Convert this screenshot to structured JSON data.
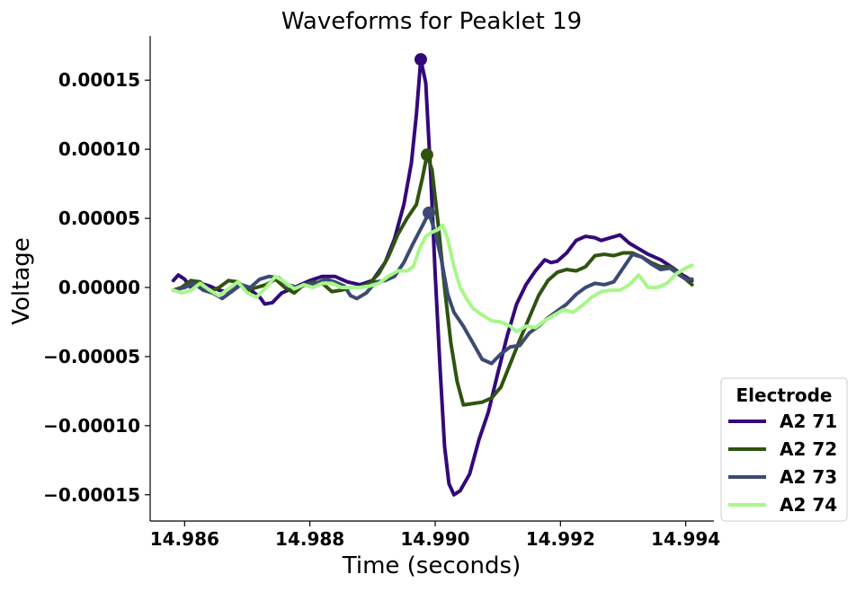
{
  "chart_data": {
    "type": "line",
    "title": "Waveforms for Peaklet 19",
    "xlabel": "Time (seconds)",
    "ylabel": "Voltage",
    "xlim": [
      14.98545,
      14.99445
    ],
    "ylim": [
      -0.000169,
      0.000182
    ],
    "xticks": [
      14.986,
      14.988,
      14.99,
      14.992,
      14.994
    ],
    "xtick_labels": [
      "14.986",
      "14.988",
      "14.990",
      "14.992",
      "14.994"
    ],
    "yticks": [
      0.00015,
      0.0001,
      5e-05,
      0.0,
      -5e-05,
      -0.0001,
      -0.00015
    ],
    "ytick_labels": [
      "0.00015",
      "0.00010",
      "0.00005",
      "0.00000",
      "−0.00005",
      "−0.00010",
      "−0.00015"
    ],
    "grid": false,
    "legend": {
      "title": "Electrode",
      "placement": "outside-bottom-right"
    },
    "series": [
      {
        "name": "A2 71",
        "color": "#33097a",
        "peak": [
          14.98977,
          0.000165
        ],
        "points": [
          [
            14.98582,
            5e-06
          ],
          [
            14.9859,
            9e-06
          ],
          [
            14.986,
            6e-06
          ],
          [
            14.9861,
            0.0
          ],
          [
            14.98625,
            3e-06
          ],
          [
            14.9864,
            1e-06
          ],
          [
            14.98655,
            -2e-06
          ],
          [
            14.98665,
            -3e-06
          ],
          [
            14.9868,
            2e-06
          ],
          [
            14.987,
            0.0
          ],
          [
            14.9872,
            -7e-06
          ],
          [
            14.98728,
            -1.2e-05
          ],
          [
            14.9874,
            -1.1e-05
          ],
          [
            14.98755,
            -4e-06
          ],
          [
            14.9877,
            -1e-06
          ],
          [
            14.98785,
            2e-06
          ],
          [
            14.988,
            5e-06
          ],
          [
            14.9882,
            8e-06
          ],
          [
            14.9884,
            8e-06
          ],
          [
            14.9886,
            4e-06
          ],
          [
            14.9888,
            2e-06
          ],
          [
            14.989,
            5e-06
          ],
          [
            14.9892,
            1.8e-05
          ],
          [
            14.98935,
            3.5e-05
          ],
          [
            14.9895,
            6e-05
          ],
          [
            14.98962,
            9e-05
          ],
          [
            14.9897,
            0.000125
          ],
          [
            14.98977,
            0.000165
          ],
          [
            14.98985,
            0.000148
          ],
          [
            14.98993,
            8e-05
          ],
          [
            14.99,
            1e-05
          ],
          [
            14.99008,
            -6e-05
          ],
          [
            14.99015,
            -0.000115
          ],
          [
            14.99022,
            -0.000142
          ],
          [
            14.9903,
            -0.00015
          ],
          [
            14.9904,
            -0.000147
          ],
          [
            14.99055,
            -0.000135
          ],
          [
            14.9907,
            -0.00011
          ],
          [
            14.99085,
            -9e-05
          ],
          [
            14.991,
            -6.2e-05
          ],
          [
            14.99115,
            -3.5e-05
          ],
          [
            14.9913,
            -1.2e-05
          ],
          [
            14.99145,
            2e-06
          ],
          [
            14.9916,
            1.2e-05
          ],
          [
            14.99175,
            2e-05
          ],
          [
            14.99185,
            1.8e-05
          ],
          [
            14.99195,
            1.9e-05
          ],
          [
            14.9921,
            2.5e-05
          ],
          [
            14.99225,
            3.4e-05
          ],
          [
            14.9924,
            3.7e-05
          ],
          [
            14.99255,
            3.6e-05
          ],
          [
            14.99265,
            3.4e-05
          ],
          [
            14.9928,
            3.6e-05
          ],
          [
            14.99295,
            3.8e-05
          ],
          [
            14.9931,
            3.2e-05
          ],
          [
            14.99325,
            2.8e-05
          ],
          [
            14.9934,
            2.4e-05
          ],
          [
            14.9936,
            2e-05
          ],
          [
            14.9938,
            1.4e-05
          ],
          [
            14.99395,
            9e-06
          ],
          [
            14.9941,
            5e-06
          ]
        ]
      },
      {
        "name": "A2 72",
        "color": "#2f5410",
        "peak": [
          14.98987,
          9.6e-05
        ],
        "points": [
          [
            14.98582,
            -2e-06
          ],
          [
            14.98595,
            0.0
          ],
          [
            14.9861,
            5e-06
          ],
          [
            14.98625,
            4e-06
          ],
          [
            14.9864,
            -3e-06
          ],
          [
            14.98655,
            0.0
          ],
          [
            14.9867,
            5e-06
          ],
          [
            14.98685,
            4e-06
          ],
          [
            14.987,
            -2e-06
          ],
          [
            14.98715,
            0.0
          ],
          [
            14.9873,
            2e-06
          ],
          [
            14.98745,
            6e-06
          ],
          [
            14.9876,
            0.0
          ],
          [
            14.98775,
            -4e-06
          ],
          [
            14.9879,
            2e-06
          ],
          [
            14.98805,
            4e-06
          ],
          [
            14.9882,
            3e-06
          ],
          [
            14.98835,
            -3e-06
          ],
          [
            14.9885,
            -2e-06
          ],
          [
            14.98865,
            0.0
          ],
          [
            14.9888,
            0.0
          ],
          [
            14.98895,
            3e-06
          ],
          [
            14.9891,
            1e-05
          ],
          [
            14.98925,
            2.2e-05
          ],
          [
            14.9894,
            3.8e-05
          ],
          [
            14.98955,
            5e-05
          ],
          [
            14.9897,
            6e-05
          ],
          [
            14.9898,
            8e-05
          ],
          [
            14.98987,
            9.6e-05
          ],
          [
            14.98995,
            8.5e-05
          ],
          [
            14.99005,
            4.5e-05
          ],
          [
            14.99015,
            0.0
          ],
          [
            14.99025,
            -4e-05
          ],
          [
            14.99035,
            -6.8e-05
          ],
          [
            14.99045,
            -8.5e-05
          ],
          [
            14.9906,
            -8.4e-05
          ],
          [
            14.99075,
            -8.3e-05
          ],
          [
            14.9909,
            -8e-05
          ],
          [
            14.99105,
            -7.2e-05
          ],
          [
            14.9912,
            -5.5e-05
          ],
          [
            14.99135,
            -3.8e-05
          ],
          [
            14.9915,
            -2.2e-05
          ],
          [
            14.99165,
            -6e-06
          ],
          [
            14.9918,
            5e-06
          ],
          [
            14.99195,
            1.1e-05
          ],
          [
            14.9921,
            1.3e-05
          ],
          [
            14.99225,
            1.2e-05
          ],
          [
            14.9924,
            1.5e-05
          ],
          [
            14.99255,
            2.3e-05
          ],
          [
            14.9927,
            2.4e-05
          ],
          [
            14.99285,
            2.3e-05
          ],
          [
            14.993,
            2.5e-05
          ],
          [
            14.99315,
            2.5e-05
          ],
          [
            14.9933,
            2.2e-05
          ],
          [
            14.99345,
            1.8e-05
          ],
          [
            14.9936,
            1.5e-05
          ],
          [
            14.99375,
            1.5e-05
          ],
          [
            14.9939,
            1e-05
          ],
          [
            14.994,
            6e-06
          ],
          [
            14.9941,
            2e-06
          ]
        ]
      },
      {
        "name": "A2 73",
        "color": "#3c4a73",
        "peak": [
          14.9899,
          5.4e-05
        ],
        "points": [
          [
            14.98582,
            -2e-06
          ],
          [
            14.986,
            0.0
          ],
          [
            14.98615,
            3e-06
          ],
          [
            14.9863,
            -2e-06
          ],
          [
            14.98645,
            -4e-06
          ],
          [
            14.9866,
            -8e-06
          ],
          [
            14.98675,
            -3e-06
          ],
          [
            14.9869,
            2e-06
          ],
          [
            14.98705,
            0.0
          ],
          [
            14.9872,
            6e-06
          ],
          [
            14.98735,
            8e-06
          ],
          [
            14.9875,
            7e-06
          ],
          [
            14.98765,
            2e-06
          ],
          [
            14.9878,
            0.0
          ],
          [
            14.98795,
            2e-06
          ],
          [
            14.9881,
            3e-06
          ],
          [
            14.98825,
            6e-06
          ],
          [
            14.9884,
            4e-06
          ],
          [
            14.98855,
            1e-06
          ],
          [
            14.98865,
            -6e-06
          ],
          [
            14.98875,
            -8e-06
          ],
          [
            14.9889,
            -4e-06
          ],
          [
            14.98905,
            4e-06
          ],
          [
            14.9892,
            5e-06
          ],
          [
            14.98935,
            8e-06
          ],
          [
            14.9895,
            1.8e-05
          ],
          [
            14.98965,
            3.2e-05
          ],
          [
            14.9898,
            4.5e-05
          ],
          [
            14.9899,
            5.4e-05
          ],
          [
            14.99,
            4e-05
          ],
          [
            14.9901,
            2e-05
          ],
          [
            14.9902,
            -5e-06
          ],
          [
            14.9903,
            -1.8e-05
          ],
          [
            14.99045,
            -2.8e-05
          ],
          [
            14.9906,
            -4e-05
          ],
          [
            14.99075,
            -5.2e-05
          ],
          [
            14.9909,
            -5.5e-05
          ],
          [
            14.99105,
            -4.8e-05
          ],
          [
            14.9912,
            -4.3e-05
          ],
          [
            14.99135,
            -4.2e-05
          ],
          [
            14.9915,
            -3.3e-05
          ],
          [
            14.99165,
            -2.8e-05
          ],
          [
            14.9918,
            -2.2e-05
          ],
          [
            14.99195,
            -1.7e-05
          ],
          [
            14.9921,
            -1.2e-05
          ],
          [
            14.99225,
            -5e-06
          ],
          [
            14.9924,
            0.0
          ],
          [
            14.99255,
            3e-06
          ],
          [
            14.9927,
            2e-06
          ],
          [
            14.99285,
            4e-06
          ],
          [
            14.993,
            1.4e-05
          ],
          [
            14.99315,
            2.4e-05
          ],
          [
            14.9933,
            2.2e-05
          ],
          [
            14.99345,
            1.7e-05
          ],
          [
            14.9936,
            1.3e-05
          ],
          [
            14.99375,
            1.4e-05
          ],
          [
            14.9939,
            9e-06
          ],
          [
            14.994,
            6e-06
          ],
          [
            14.9941,
            6e-06
          ]
        ]
      },
      {
        "name": "A2 74",
        "color": "#a8f78a",
        "peak": null,
        "points": [
          [
            14.98582,
            -2e-06
          ],
          [
            14.98595,
            -4e-06
          ],
          [
            14.9861,
            -2e-06
          ],
          [
            14.98625,
            3e-06
          ],
          [
            14.9864,
            -2e-06
          ],
          [
            14.98655,
            -6e-06
          ],
          [
            14.9867,
            -1e-06
          ],
          [
            14.98685,
            4e-06
          ],
          [
            14.987,
            -4e-06
          ],
          [
            14.98715,
            -7e-06
          ],
          [
            14.9873,
            0.0
          ],
          [
            14.98745,
            8e-06
          ],
          [
            14.9876,
            4e-06
          ],
          [
            14.98775,
            -1e-06
          ],
          [
            14.9879,
            2e-06
          ],
          [
            14.98805,
            0.0
          ],
          [
            14.9882,
            3e-06
          ],
          [
            14.98835,
            3e-06
          ],
          [
            14.9885,
            0.0
          ],
          [
            14.98865,
            0.0
          ],
          [
            14.9888,
            0.0
          ],
          [
            14.98895,
            1e-06
          ],
          [
            14.9891,
            3e-06
          ],
          [
            14.98925,
            8e-06
          ],
          [
            14.9894,
            1.2e-05
          ],
          [
            14.98955,
            1.2e-05
          ],
          [
            14.98965,
            1.5e-05
          ],
          [
            14.98975,
            2.8e-05
          ],
          [
            14.98985,
            3.7e-05
          ],
          [
            14.98995,
            4e-05
          ],
          [
            14.99005,
            4.2e-05
          ],
          [
            14.99012,
            4.5e-05
          ],
          [
            14.9902,
            3.5e-05
          ],
          [
            14.9903,
            1.5e-05
          ],
          [
            14.9904,
            0.0
          ],
          [
            14.9905,
            -8e-06
          ],
          [
            14.9906,
            -1.5e-05
          ],
          [
            14.99075,
            -2e-05
          ],
          [
            14.9909,
            -2.4e-05
          ],
          [
            14.99105,
            -2.5e-05
          ],
          [
            14.9912,
            -2.8e-05
          ],
          [
            14.9913,
            -3.2e-05
          ],
          [
            14.99145,
            -2.8e-05
          ],
          [
            14.9916,
            -2.9e-05
          ],
          [
            14.99175,
            -2.4e-05
          ],
          [
            14.9919,
            -2e-05
          ],
          [
            14.99205,
            -1.6e-05
          ],
          [
            14.9922,
            -1.8e-05
          ],
          [
            14.99235,
            -1.3e-05
          ],
          [
            14.9925,
            -7e-06
          ],
          [
            14.99265,
            -3e-06
          ],
          [
            14.9928,
            -2e-06
          ],
          [
            14.99295,
            -2e-06
          ],
          [
            14.9931,
            2e-06
          ],
          [
            14.99325,
            9e-06
          ],
          [
            14.9934,
            0.0
          ],
          [
            14.99355,
            0.0
          ],
          [
            14.9937,
            3e-06
          ],
          [
            14.99385,
            1e-05
          ],
          [
            14.994,
            1.4e-05
          ],
          [
            14.9941,
            1.6e-05
          ]
        ]
      }
    ]
  }
}
